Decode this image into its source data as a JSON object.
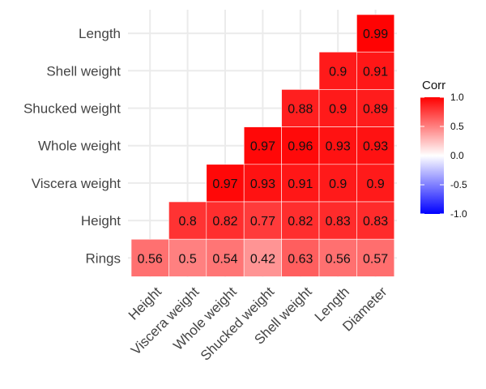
{
  "chart_data": {
    "type": "heatmap",
    "rows": [
      "Length",
      "Shell weight",
      "Shucked weight",
      "Whole weight",
      "Viscera weight",
      "Height",
      "Rings"
    ],
    "columns": [
      "Height",
      "Viscera weight",
      "Whole weight",
      "Shucked weight",
      "Shell weight",
      "Length",
      "Diameter"
    ],
    "values": [
      [
        null,
        null,
        null,
        null,
        null,
        null,
        0.99
      ],
      [
        null,
        null,
        null,
        null,
        null,
        0.9,
        0.91
      ],
      [
        null,
        null,
        null,
        null,
        0.88,
        0.9,
        0.89
      ],
      [
        null,
        null,
        null,
        0.97,
        0.96,
        0.93,
        0.93
      ],
      [
        null,
        null,
        0.97,
        0.93,
        0.91,
        0.9,
        0.9
      ],
      [
        null,
        0.8,
        0.82,
        0.77,
        0.82,
        0.83,
        0.83
      ],
      [
        0.56,
        0.5,
        0.54,
        0.42,
        0.63,
        0.56,
        0.57
      ]
    ],
    "legend": {
      "title": "Corr",
      "ticks": [
        "1.0",
        "0.5",
        "0.0",
        "-0.5",
        "-1.0"
      ],
      "range": [
        -1,
        1
      ],
      "placement": "right"
    },
    "colors": {
      "low": "#0000ff",
      "mid": "#ffffff",
      "high": "#ff0000"
    },
    "grid": true
  }
}
